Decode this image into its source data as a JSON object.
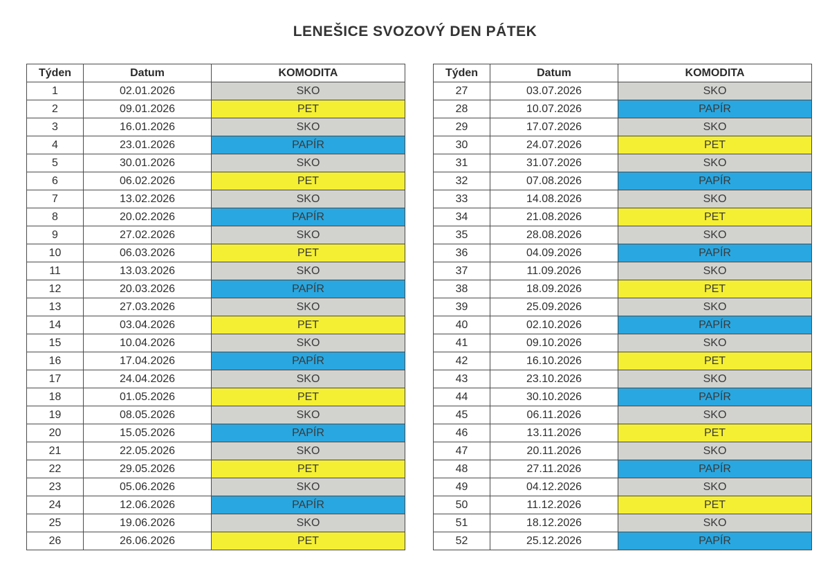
{
  "title": "LENEŠICE SVOZOVÝ DEN PÁTEK",
  "columns": {
    "week": "Týden",
    "date": "Datum",
    "commodity": "KOMODITA"
  },
  "commodity_colors": {
    "SKO": "#d2d2cf",
    "PET": "#f4ef32",
    "PAPÍR": "#29a7e0"
  },
  "tables": {
    "left": {
      "rows": [
        {
          "week": "1",
          "date": "02.01.2026",
          "commodity": "SKO"
        },
        {
          "week": "2",
          "date": "09.01.2026",
          "commodity": "PET"
        },
        {
          "week": "3",
          "date": "16.01.2026",
          "commodity": "SKO"
        },
        {
          "week": "4",
          "date": "23.01.2026",
          "commodity": "PAPÍR"
        },
        {
          "week": "5",
          "date": "30.01.2026",
          "commodity": "SKO"
        },
        {
          "week": "6",
          "date": "06.02.2026",
          "commodity": "PET"
        },
        {
          "week": "7",
          "date": "13.02.2026",
          "commodity": "SKO"
        },
        {
          "week": "8",
          "date": "20.02.2026",
          "commodity": "PAPÍR"
        },
        {
          "week": "9",
          "date": "27.02.2026",
          "commodity": "SKO"
        },
        {
          "week": "10",
          "date": "06.03.2026",
          "commodity": "PET"
        },
        {
          "week": "11",
          "date": "13.03.2026",
          "commodity": "SKO"
        },
        {
          "week": "12",
          "date": "20.03.2026",
          "commodity": "PAPÍR"
        },
        {
          "week": "13",
          "date": "27.03.2026",
          "commodity": "SKO"
        },
        {
          "week": "14",
          "date": "03.04.2026",
          "commodity": "PET"
        },
        {
          "week": "15",
          "date": "10.04.2026",
          "commodity": "SKO"
        },
        {
          "week": "16",
          "date": "17.04.2026",
          "commodity": "PAPÍR"
        },
        {
          "week": "17",
          "date": "24.04.2026",
          "commodity": "SKO"
        },
        {
          "week": "18",
          "date": "01.05.2026",
          "commodity": "PET"
        },
        {
          "week": "19",
          "date": "08.05.2026",
          "commodity": "SKO"
        },
        {
          "week": "20",
          "date": "15.05.2026",
          "commodity": "PAPÍR"
        },
        {
          "week": "21",
          "date": "22.05.2026",
          "commodity": "SKO"
        },
        {
          "week": "22",
          "date": "29.05.2026",
          "commodity": "PET"
        },
        {
          "week": "23",
          "date": "05.06.2026",
          "commodity": "SKO"
        },
        {
          "week": "24",
          "date": "12.06.2026",
          "commodity": "PAPÍR"
        },
        {
          "week": "25",
          "date": "19.06.2026",
          "commodity": "SKO"
        },
        {
          "week": "26",
          "date": "26.06.2026",
          "commodity": "PET"
        }
      ]
    },
    "right": {
      "rows": [
        {
          "week": "27",
          "date": "03.07.2026",
          "commodity": "SKO"
        },
        {
          "week": "28",
          "date": "10.07.2026",
          "commodity": "PAPÍR"
        },
        {
          "week": "29",
          "date": "17.07.2026",
          "commodity": "SKO"
        },
        {
          "week": "30",
          "date": "24.07.2026",
          "commodity": "PET"
        },
        {
          "week": "31",
          "date": "31.07.2026",
          "commodity": "SKO"
        },
        {
          "week": "32",
          "date": "07.08.2026",
          "commodity": "PAPÍR"
        },
        {
          "week": "33",
          "date": "14.08.2026",
          "commodity": "SKO"
        },
        {
          "week": "34",
          "date": "21.08.2026",
          "commodity": "PET"
        },
        {
          "week": "35",
          "date": "28.08.2026",
          "commodity": "SKO"
        },
        {
          "week": "36",
          "date": "04.09.2026",
          "commodity": "PAPÍR"
        },
        {
          "week": "37",
          "date": "11.09.2026",
          "commodity": "SKO"
        },
        {
          "week": "38",
          "date": "18.09.2026",
          "commodity": "PET"
        },
        {
          "week": "39",
          "date": "25.09.2026",
          "commodity": "SKO"
        },
        {
          "week": "40",
          "date": "02.10.2026",
          "commodity": "PAPÍR"
        },
        {
          "week": "41",
          "date": "09.10.2026",
          "commodity": "SKO"
        },
        {
          "week": "42",
          "date": "16.10.2026",
          "commodity": "PET"
        },
        {
          "week": "43",
          "date": "23.10.2026",
          "commodity": "SKO"
        },
        {
          "week": "44",
          "date": "30.10.2026",
          "commodity": "PAPÍR"
        },
        {
          "week": "45",
          "date": "06.11.2026",
          "commodity": "SKO"
        },
        {
          "week": "46",
          "date": "13.11.2026",
          "commodity": "PET"
        },
        {
          "week": "47",
          "date": "20.11.2026",
          "commodity": "SKO"
        },
        {
          "week": "48",
          "date": "27.11.2026",
          "commodity": "PAPÍR"
        },
        {
          "week": "49",
          "date": "04.12.2026",
          "commodity": "SKO"
        },
        {
          "week": "50",
          "date": "11.12.2026",
          "commodity": "PET"
        },
        {
          "week": "51",
          "date": "18.12.2026",
          "commodity": "SKO"
        },
        {
          "week": "52",
          "date": "25.12.2026",
          "commodity": "PAPÍR"
        }
      ]
    }
  }
}
